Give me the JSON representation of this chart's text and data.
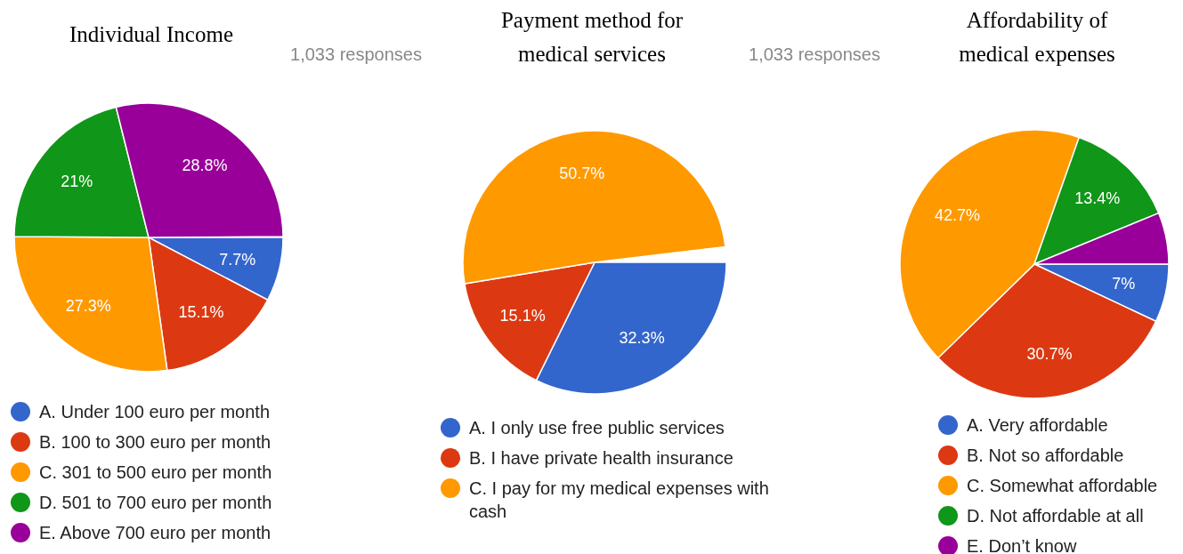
{
  "chart_data": [
    {
      "type": "pie",
      "title": "Individual Income",
      "annotations": [
        "1,033 responses"
      ],
      "categories": [
        "A. Under 100 euro per month",
        "B. 100 to 300 euro per month",
        "C. 301 to 500 euro per month",
        "D. 501 to 700 euro per month",
        "E. Above 700 euro per month"
      ],
      "values": [
        7.7,
        15.1,
        27.3,
        21,
        28.8
      ],
      "value_labels": [
        "7.7%",
        "15.1%",
        "27.3%",
        "21%",
        "28.8%"
      ],
      "colors": [
        "#3366cc",
        "#dc3912",
        "#ff9900",
        "#109618",
        "#990099"
      ],
      "legend": "bottom"
    },
    {
      "type": "pie",
      "title": "Payment method for medical services",
      "annotations": [
        "1,033 responses"
      ],
      "categories": [
        "A. I only use free public services",
        "B. I have private health insurance",
        "C. I pay for my medical expenses with cash"
      ],
      "values": [
        32.3,
        15.1,
        50.7
      ],
      "value_labels": [
        "32.3%",
        "15.1%",
        "50.7%"
      ],
      "colors": [
        "#3366cc",
        "#dc3912",
        "#ff9900"
      ],
      "legend": "bottom"
    },
    {
      "type": "pie",
      "title": "Affordability of medical expenses",
      "categories": [
        "A. Very affordable",
        "B. Not so affordable",
        "C. Somewhat affordable",
        "D. Not affordable at all",
        "E. Don’t know"
      ],
      "values": [
        7,
        30.7,
        42.7,
        13.4,
        6.2
      ],
      "value_labels": [
        "7%",
        "30.7%",
        "42.7%",
        "13.4%",
        null
      ],
      "colors": [
        "#3366cc",
        "#dc3912",
        "#ff9900",
        "#109618",
        "#990099"
      ],
      "legend": "bottom"
    }
  ]
}
